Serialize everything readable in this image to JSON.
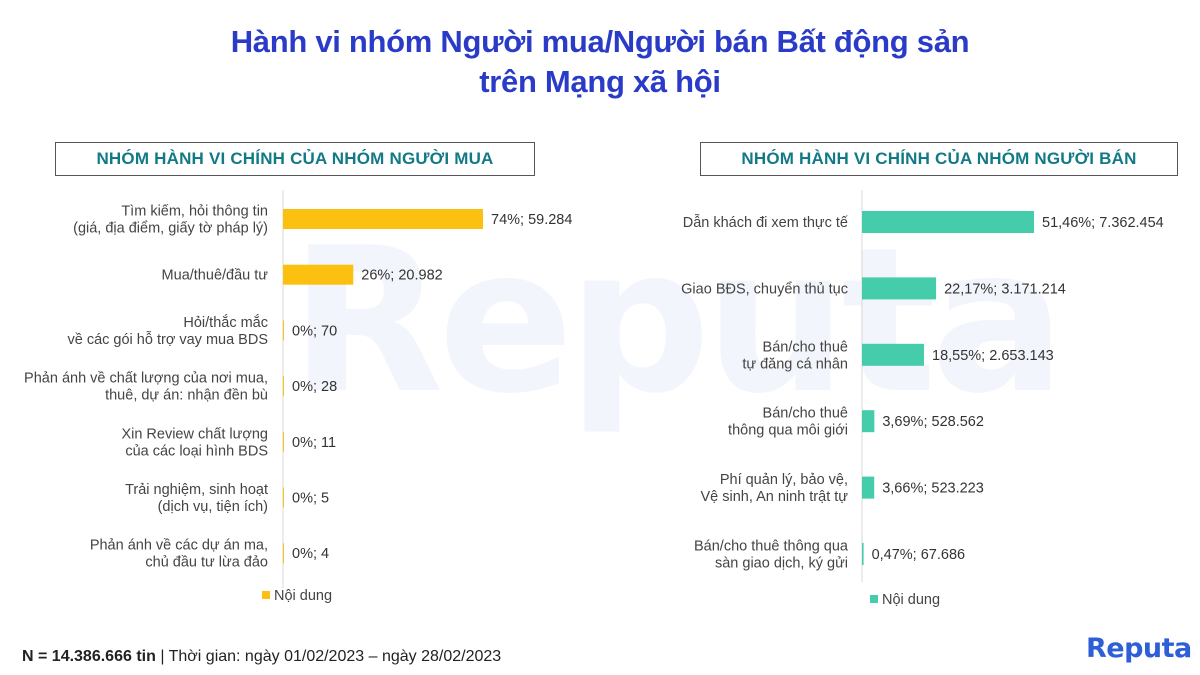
{
  "title": {
    "line1": "Hành vi nhóm Người mua/Người bán Bất động sản",
    "line2": "trên Mạng xã hội"
  },
  "watermark": "Reputa",
  "chart_data": [
    {
      "type": "bar",
      "orientation": "horizontal",
      "panel_title": "NHÓM HÀNH VI CHÍNH CỦA NHÓM NGƯỜI MUA",
      "color": "#fcc010",
      "categories": [
        [
          "Tìm kiếm, hỏi thông tin",
          "(giá, địa điểm, giấy tờ pháp lý)"
        ],
        [
          "Mua/thuê/đầu tư"
        ],
        [
          "Hỏi/thắc mắc",
          "về các gói hỗ trợ vay mua BDS"
        ],
        [
          "Phản ánh về chất lượng của nơi mua,",
          "thuê, dự án: nhận đền bù"
        ],
        [
          "Xin Review chất lượng",
          "của các loại hình BDS"
        ],
        [
          "Trải nghiệm, sinh hoạt",
          "(dịch vụ, tiện ích)"
        ],
        [
          "Phản ánh về các dự án ma,",
          "chủ đầu tư lừa đảo"
        ]
      ],
      "percent": [
        74,
        26,
        0,
        0,
        0,
        0,
        0
      ],
      "values": [
        59284,
        20982,
        70,
        28,
        11,
        5,
        4
      ],
      "value_labels": [
        "74%;  59.284",
        "26%;  20.982",
        "0%;  70",
        "0%;  28",
        "0%;  11",
        "0%;  5",
        "0%;  4"
      ],
      "legend": "Nội dung"
    },
    {
      "type": "bar",
      "orientation": "horizontal",
      "panel_title": "NHÓM HÀNH VI CHÍNH CỦA NHÓM NGƯỜI BÁN",
      "color": "#45ccaa",
      "categories": [
        [
          "Dẫn khách đi xem thực tế"
        ],
        [
          "Giao BĐS, chuyển thủ tục"
        ],
        [
          "Bán/cho thuê",
          "tự đăng cá nhân"
        ],
        [
          "Bán/cho thuê",
          "thông qua môi giới"
        ],
        [
          "Phí quản lý, bảo vệ,",
          "Vệ sinh, An ninh trật tự"
        ],
        [
          "Bán/cho thuê thông qua",
          "sàn giao dịch, ký gửi"
        ]
      ],
      "percent": [
        51.46,
        22.17,
        18.55,
        3.69,
        3.66,
        0.47
      ],
      "values": [
        7362454,
        3171214,
        2653143,
        528562,
        523223,
        67686
      ],
      "value_labels": [
        "51,46%;  7.362.454",
        "22,17%;  3.171.214",
        "18,55%;  2.653.143",
        "3,69%;  528.562",
        "3,66%;  523.223",
        "0,47%;  67.686"
      ],
      "legend": "Nội dung"
    }
  ],
  "footer": {
    "n_label": "N = 14.386.666 tin",
    "separator": "|",
    "period": "Thời gian: ngày 01/02/2023 – ngày 28/02/2023"
  },
  "logo": "Reputa"
}
